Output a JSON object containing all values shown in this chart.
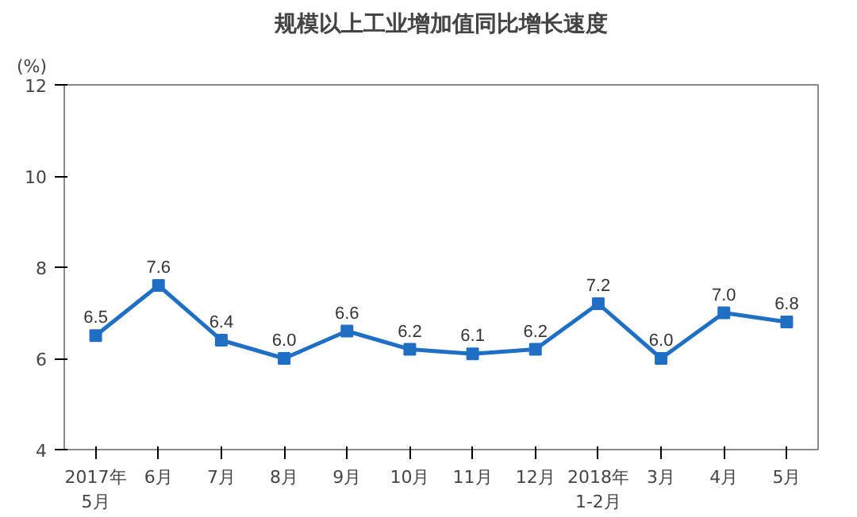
{
  "chart_data": {
    "type": "line",
    "title": "规模以上工业增加值同比增长速度",
    "ylabel": "(%)",
    "categories": [
      "2017年\n5月",
      "6月",
      "7月",
      "8月",
      "9月",
      "10月",
      "11月",
      "12月",
      "2018年\n1-2月",
      "3月",
      "4月",
      "5月"
    ],
    "series": [
      {
        "color": "#1f6fc5",
        "values": [
          6.5,
          7.6,
          6.4,
          6.0,
          6.6,
          6.2,
          6.1,
          6.2,
          7.2,
          6.0,
          7.0,
          6.8
        ],
        "value_labels": [
          "6.5",
          "7.6",
          "6.4",
          "6.0",
          "6.6",
          "6.2",
          "6.1",
          "6.2",
          "7.2",
          "6.0",
          "7.0",
          "6.8"
        ]
      }
    ],
    "ylim": [
      4,
      12
    ],
    "yticks": [
      4,
      6,
      8,
      10,
      12
    ],
    "grid": false,
    "marker": "square",
    "line_style": "solid"
  }
}
